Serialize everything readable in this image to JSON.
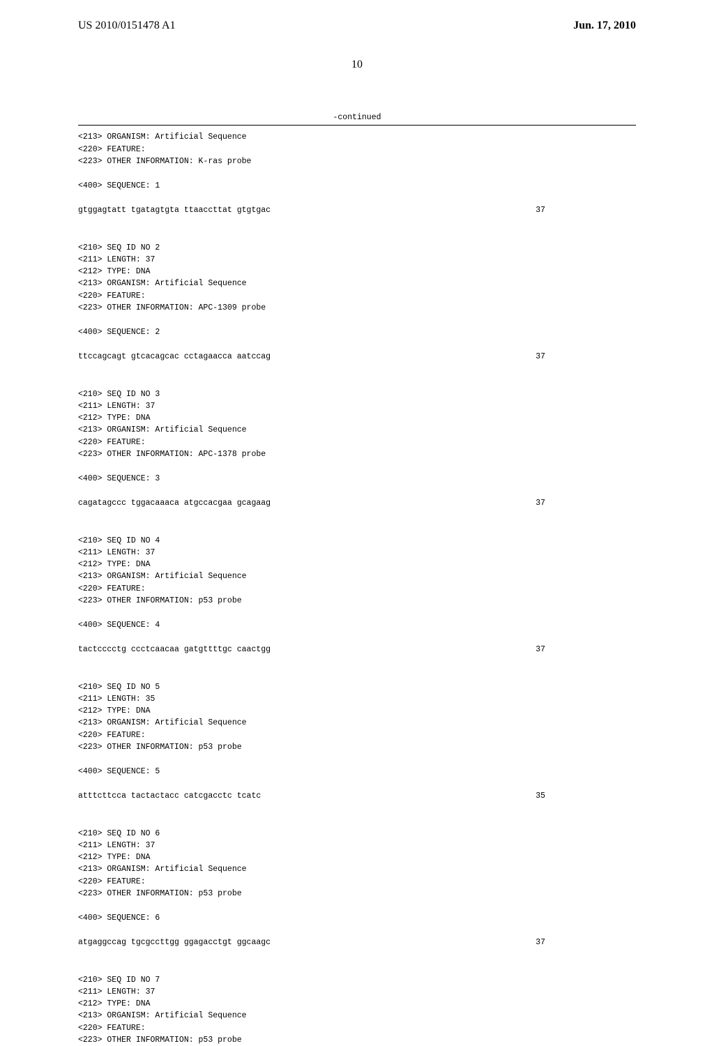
{
  "header": {
    "pub_number": "US 2010/0151478 A1",
    "pub_date": "Jun. 17, 2010",
    "page_number": "10"
  },
  "continued_label": "-continued",
  "entries": [
    {
      "meta": [
        "<213> ORGANISM: Artificial Sequence",
        "<220> FEATURE:",
        "<223> OTHER INFORMATION: K-ras probe"
      ],
      "seq_label": "<400> SEQUENCE: 1",
      "sequence": "gtggagtatt tgatagtgta ttaaccttat gtgtgac",
      "length": "37"
    },
    {
      "meta": [
        "<210> SEQ ID NO 2",
        "<211> LENGTH: 37",
        "<212> TYPE: DNA",
        "<213> ORGANISM: Artificial Sequence",
        "<220> FEATURE:",
        "<223> OTHER INFORMATION: APC-1309 probe"
      ],
      "seq_label": "<400> SEQUENCE: 2",
      "sequence": "ttccagcagt gtcacagcac cctagaacca aatccag",
      "length": "37"
    },
    {
      "meta": [
        "<210> SEQ ID NO 3",
        "<211> LENGTH: 37",
        "<212> TYPE: DNA",
        "<213> ORGANISM: Artificial Sequence",
        "<220> FEATURE:",
        "<223> OTHER INFORMATION: APC-1378 probe"
      ],
      "seq_label": "<400> SEQUENCE: 3",
      "sequence": "cagatagccc tggacaaaca atgccacgaa gcagaag",
      "length": "37"
    },
    {
      "meta": [
        "<210> SEQ ID NO 4",
        "<211> LENGTH: 37",
        "<212> TYPE: DNA",
        "<213> ORGANISM: Artificial Sequence",
        "<220> FEATURE:",
        "<223> OTHER INFORMATION: p53 probe"
      ],
      "seq_label": "<400> SEQUENCE: 4",
      "sequence": "tactcccctg ccctcaacaa gatgttttgc caactgg",
      "length": "37"
    },
    {
      "meta": [
        "<210> SEQ ID NO 5",
        "<211> LENGTH: 35",
        "<212> TYPE: DNA",
        "<213> ORGANISM: Artificial Sequence",
        "<220> FEATURE:",
        "<223> OTHER INFORMATION: p53 probe"
      ],
      "seq_label": "<400> SEQUENCE: 5",
      "sequence": "atttcttcca tactactacc catcgacctc tcatc",
      "length": "35"
    },
    {
      "meta": [
        "<210> SEQ ID NO 6",
        "<211> LENGTH: 37",
        "<212> TYPE: DNA",
        "<213> ORGANISM: Artificial Sequence",
        "<220> FEATURE:",
        "<223> OTHER INFORMATION: p53 probe"
      ],
      "seq_label": "<400> SEQUENCE: 6",
      "sequence": "atgaggccag tgcgccttgg ggagacctgt ggcaagc",
      "length": "37"
    },
    {
      "meta": [
        "<210> SEQ ID NO 7",
        "<211> LENGTH: 37",
        "<212> TYPE: DNA",
        "<213> ORGANISM: Artificial Sequence",
        "<220> FEATURE:",
        "<223> OTHER INFORMATION: p53 probe"
      ],
      "seq_label": "",
      "sequence": "",
      "length": ""
    }
  ]
}
